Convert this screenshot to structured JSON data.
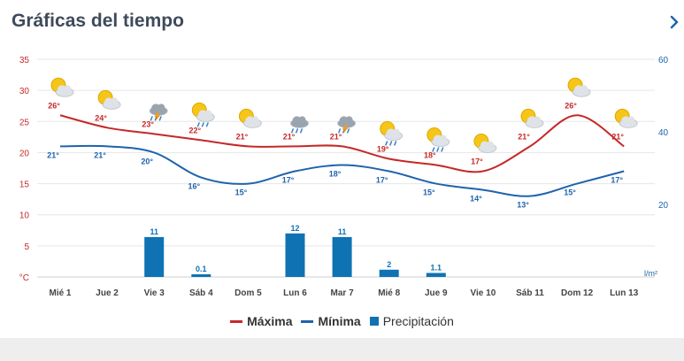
{
  "header": {
    "title": "Gráficas del tiempo"
  },
  "colors": {
    "max": "#c62828",
    "min": "#1e63ad",
    "precip": "#0f73b3",
    "grid": "#e6e6e6",
    "axis_left": "#c62828",
    "axis_right": "#1e63ad",
    "footer": "#eeeeee"
  },
  "legend": {
    "max_label": "Máxima",
    "min_label": "Mínima",
    "precip_label": "Precipitación"
  },
  "chart_data": {
    "type": "line",
    "categories": [
      "Mié 1",
      "Jue 2",
      "Vie 3",
      "Sáb 4",
      "Dom 5",
      "Lun 6",
      "Mar 7",
      "Mié 8",
      "Jue 9",
      "Vie 10",
      "Sáb 11",
      "Dom 12",
      "Lun 13"
    ],
    "left_axis": {
      "unit": "°C",
      "ticks": [
        "35",
        "30",
        "25",
        "20",
        "15",
        "10",
        "5"
      ],
      "ylim": [
        0,
        35
      ]
    },
    "right_axis": {
      "unit": "l/m²",
      "ticks": [
        "60",
        "40",
        "20"
      ],
      "ylim": [
        0,
        60
      ]
    },
    "grid": true,
    "legend_position": "bottom",
    "series": [
      {
        "name": "Máxima",
        "values": [
          26,
          24,
          23,
          22,
          21,
          21,
          21,
          19,
          18,
          17,
          21,
          26,
          21
        ],
        "labels": [
          "26°",
          "24°",
          "23°",
          "22°",
          "21°",
          "21°",
          "21°",
          "19°",
          "18°",
          "17°",
          "21°",
          "26°",
          "21°"
        ]
      },
      {
        "name": "Mínima",
        "values": [
          21,
          21,
          20,
          16,
          15,
          17,
          18,
          17,
          15,
          14,
          13,
          15,
          17
        ],
        "labels": [
          "21°",
          "21°",
          "20°",
          "16°",
          "15°",
          "17°",
          "18°",
          "17°",
          "15°",
          "14°",
          "13°",
          "15°",
          "17°"
        ]
      },
      {
        "name": "Precipitación",
        "values": [
          0,
          0,
          11,
          0.1,
          0,
          12,
          11,
          2,
          1.1,
          0,
          0,
          0,
          0
        ],
        "labels": [
          "",
          "",
          "11",
          "0.1",
          "",
          "12",
          "11",
          "2",
          "1.1",
          "",
          "",
          "",
          ""
        ]
      }
    ],
    "icons": [
      "sun-cloud-icon",
      "sun-cloud-icon",
      "storm-icon",
      "rain-sun-icon",
      "sun-cloud-icon",
      "rain-icon",
      "storm-icon",
      "rain-sun-icon",
      "rain-sun-icon",
      "sun-cloud-icon",
      "sun-cloud-icon",
      "sun-cloud-icon",
      "sun-cloud-icon"
    ]
  }
}
